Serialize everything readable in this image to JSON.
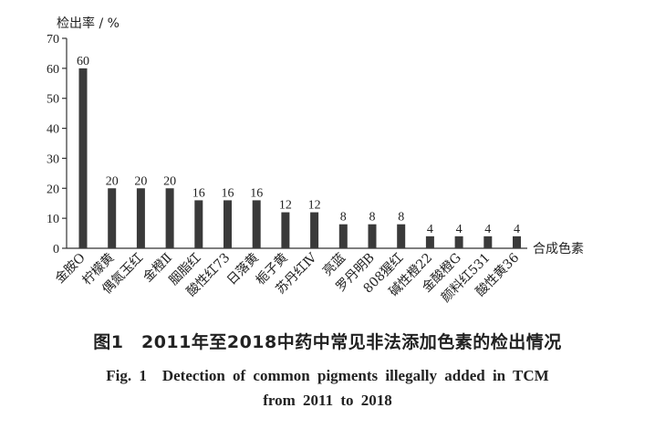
{
  "chart_data": {
    "type": "bar",
    "title": "",
    "ylabel": "检出率 / %",
    "xlabel": "合成色素",
    "ylim": [
      0,
      70
    ],
    "yticks": [
      0,
      10,
      20,
      30,
      40,
      50,
      60,
      70
    ],
    "categories": [
      "金胺O",
      "柠檬黄",
      "偶氮玉红",
      "金橙Ⅱ",
      "胭脂红",
      "酸性红73",
      "日落黄",
      "栀子黄",
      "苏丹红Ⅳ",
      "亮蓝",
      "罗丹明B",
      "808猩红",
      "碱性橙22",
      "金酸橙G",
      "颜料红531",
      "酸性黄36"
    ],
    "values": [
      60,
      20,
      20,
      20,
      16,
      16,
      16,
      12,
      12,
      8,
      8,
      8,
      4,
      4,
      4,
      4
    ],
    "grid": false,
    "bar_color": "#3a3a3a"
  },
  "caption": {
    "cn": "图1　2011年至2018中药中常见非法添加色素的检出情况",
    "en_line1": "Fig. 1　Detection of common pigments illegally added in TCM",
    "en_line2": "from 2011 to 2018"
  }
}
